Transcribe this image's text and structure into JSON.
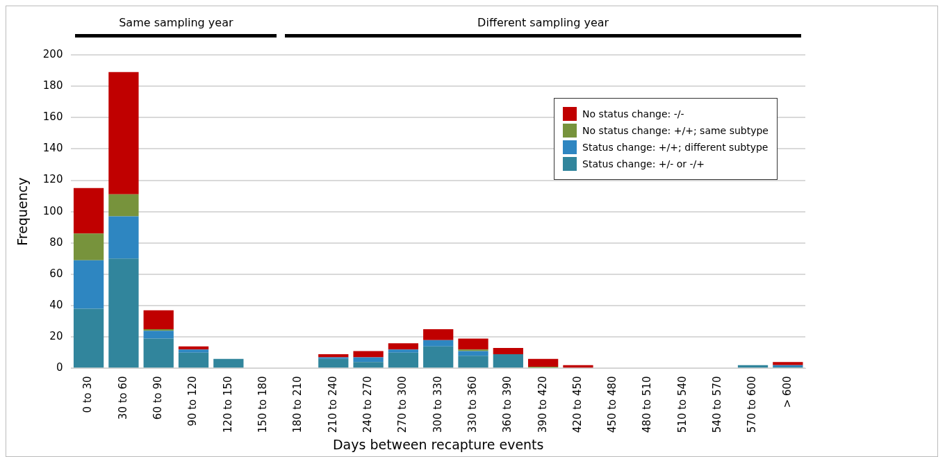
{
  "chart_data": {
    "type": "bar",
    "stacked": true,
    "xlabel": "Days between recapture events",
    "ylabel": "Frequency",
    "categories": [
      "0 to 30",
      "30 to 60",
      "60 to 90",
      "90 to 120",
      "120 to 150",
      "150 to 180",
      "180 to 210",
      "210 to 240",
      "240 to 270",
      "270 to 300",
      "300 to 330",
      "330 to 360",
      "360 to 390",
      "390 to 420",
      "420 to 450",
      "450 to 480",
      "480 to 510",
      "510 to 540",
      "540 to 570",
      "570 to 600",
      "> 600"
    ],
    "series": [
      {
        "name": "Status change: +/-  or  -/+",
        "color": "#31859c",
        "values": [
          38,
          70,
          19,
          10,
          6,
          0,
          0,
          6,
          4,
          10,
          14,
          8,
          9,
          0,
          0,
          0,
          0,
          0,
          0,
          2,
          1
        ]
      },
      {
        "name": "Status change: +/+; different subtype",
        "color": "#2e86c1",
        "values": [
          31,
          27,
          5,
          2,
          0,
          0,
          0,
          1,
          3,
          2,
          4,
          3,
          0,
          0,
          0,
          0,
          0,
          0,
          0,
          0,
          1
        ]
      },
      {
        "name": "No status change: +/+; same subtype",
        "color": "#77933c",
        "values": [
          17,
          14,
          1,
          0,
          0,
          0,
          0,
          0,
          0,
          0,
          0,
          1,
          0,
          1,
          0,
          0,
          0,
          0,
          0,
          0,
          0
        ]
      },
      {
        "name": "No status change: -/-",
        "color": "#c00000",
        "values": [
          29,
          78,
          12,
          2,
          0,
          0,
          0,
          2,
          4,
          4,
          7,
          7,
          4,
          5,
          2,
          0,
          0,
          0,
          0,
          0,
          2
        ]
      }
    ],
    "ylim": [
      0,
      200
    ],
    "yticks": [
      0,
      20,
      40,
      60,
      80,
      100,
      120,
      140,
      160,
      180,
      200
    ],
    "grid": "y",
    "legend": "top right",
    "annotations": [
      "Same sampling year",
      "Different sampling year"
    ]
  }
}
